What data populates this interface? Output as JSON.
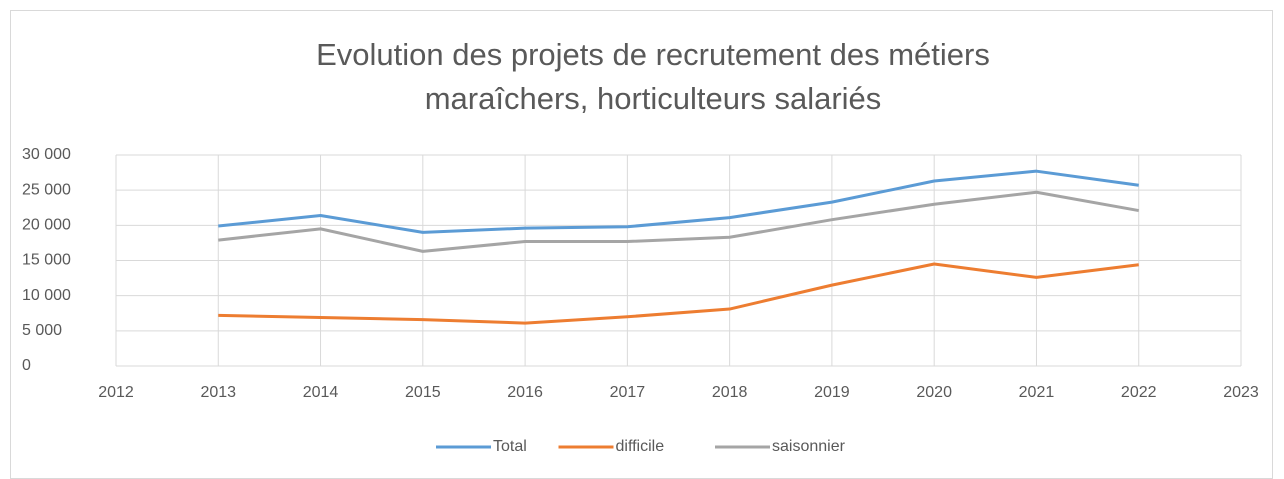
{
  "chart_data": {
    "type": "line",
    "title": [
      "Evolution des projets de recrutement des métiers",
      "maraîchers, horticulteurs salariés"
    ],
    "x": [
      2013,
      2014,
      2015,
      2016,
      2017,
      2018,
      2019,
      2020,
      2021,
      2022
    ],
    "series": [
      {
        "name": "Total",
        "color": "#5b9bd5",
        "values": [
          19900,
          21400,
          19000,
          19600,
          19800,
          21100,
          23300,
          26300,
          27700,
          25700
        ]
      },
      {
        "name": "difficile",
        "color": "#ed7d31",
        "values": [
          7200,
          6900,
          6600,
          6100,
          7000,
          8100,
          11500,
          14500,
          12600,
          14400
        ]
      },
      {
        "name": "saisonnier",
        "color": "#a5a5a5",
        "values": [
          17900,
          19500,
          16300,
          17700,
          17700,
          18300,
          20800,
          23000,
          24700,
          22100
        ]
      }
    ],
    "xlim": [
      2012,
      2023
    ],
    "xticks": [
      2012,
      2013,
      2014,
      2015,
      2016,
      2017,
      2018,
      2019,
      2020,
      2021,
      2022,
      2023
    ],
    "ylim": [
      0,
      30000
    ],
    "yticks": [
      {
        "value": 0,
        "label": "0"
      },
      {
        "value": 5000,
        "label": "5 000"
      },
      {
        "value": 10000,
        "label": "10 000"
      },
      {
        "value": 15000,
        "label": "15 000"
      },
      {
        "value": 20000,
        "label": "20 000"
      },
      {
        "value": 25000,
        "label": "25 000"
      },
      {
        "value": 30000,
        "label": "30 000"
      }
    ],
    "grid": true,
    "legend": "bottom"
  }
}
